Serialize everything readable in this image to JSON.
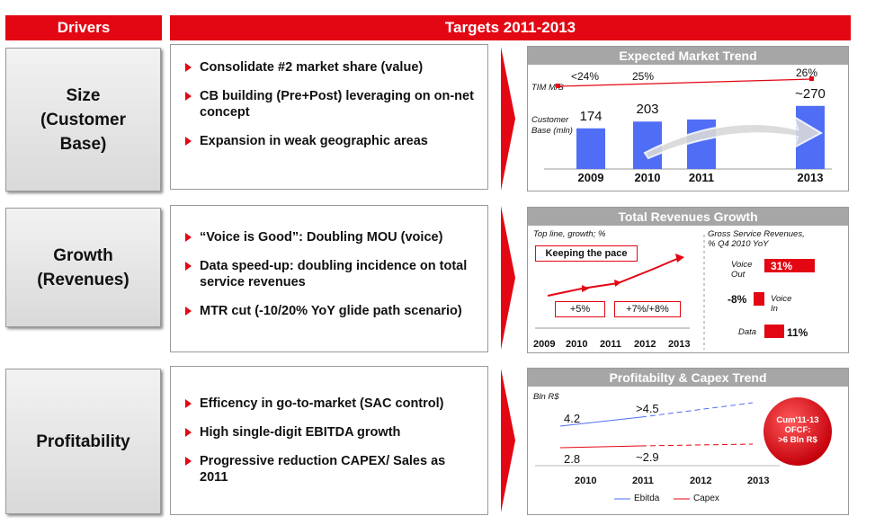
{
  "header": {
    "drivers": "Drivers",
    "targets": "Targets 2011-2013"
  },
  "rows": [
    {
      "driver": [
        "Size",
        "(Customer",
        "Base)"
      ],
      "bullets": [
        "Consolidate #2 market share (value)",
        "CB building (Pre+Post) leveraging on on-net concept",
        "Expansion in  weak geographic areas"
      ]
    },
    {
      "driver": [
        "Growth",
        "(Revenues)"
      ],
      "bullets": [
        "“Voice is Good”: Doubling MOU (voice)",
        "Data speed-up: doubling incidence on total service revenues",
        "MTR cut (-10/20% YoY glide path scenario)"
      ]
    },
    {
      "driver": [
        "Profitability"
      ],
      "bullets": [
        "Efficency in go-to-market (SAC control)",
        "High single-digit EBITDA growth",
        "Progressive reduction CAPEX/ Sales as 2011"
      ]
    }
  ],
  "market_panel": {
    "title": "Expected Market Trend",
    "tim_label": "TIM  M/S",
    "share_labels": [
      "<24%",
      "25%",
      "26%"
    ],
    "cb_label_1": "Customer",
    "cb_label_2": "Base (mln)"
  },
  "revenue_panel": {
    "title": "Total Revenues Growth",
    "left_label": "Top line, growth; %",
    "keeping": "Keeping the pace",
    "growth_1": "+5%",
    "growth_2": "+7%/+8%",
    "years": [
      "2009",
      "2010",
      "2011",
      "2012",
      "2013"
    ],
    "right_label_1": "Gross Service Revenues,",
    "right_label_2": "% Q4 2010 YoY",
    "items": [
      {
        "label_1": "Voice",
        "label_2": "Out",
        "value": "31%"
      },
      {
        "label_1": "Voice",
        "label_2": "In",
        "value": "-8%"
      },
      {
        "label_1": "Data",
        "label_2": "",
        "value": "11%"
      }
    ]
  },
  "profit_panel": {
    "title": "Profitabilty & Capex Trend",
    "unit": "Bln R$",
    "ebitda_values": [
      "4.2",
      ">4.5"
    ],
    "capex_values": [
      "2.8",
      "~2.9"
    ],
    "years": [
      "2010",
      "2011",
      "2012",
      "2013"
    ],
    "legend": [
      "Ebitda",
      "Capex"
    ],
    "badge": [
      "Cum'11-13",
      "OFCF:",
      ">6 Bln R$"
    ]
  },
  "colors": {
    "red": "#e30613",
    "blue": "#4f6ef5",
    "grey": "#a6a6a6"
  },
  "chart_data": [
    {
      "type": "bar",
      "title": "Expected Market Trend",
      "ylabel": "Customer Base (mln)",
      "categories": [
        "2009",
        "2010",
        "2011",
        "2013"
      ],
      "values": [
        174,
        203,
        null,
        270
      ],
      "value_labels": [
        "174",
        "203",
        "",
        "~270"
      ],
      "ylim": [
        0,
        300
      ]
    },
    {
      "type": "line",
      "title": "Profitabilty & Capex Trend",
      "ylabel": "Bln R$",
      "x": [
        "2010",
        "2011",
        "2012",
        "2013"
      ],
      "series": [
        {
          "name": "Ebitda",
          "values": [
            4.2,
            4.5,
            null,
            null
          ]
        },
        {
          "name": "Capex",
          "values": [
            2.8,
            2.9,
            null,
            null
          ]
        }
      ]
    }
  ]
}
